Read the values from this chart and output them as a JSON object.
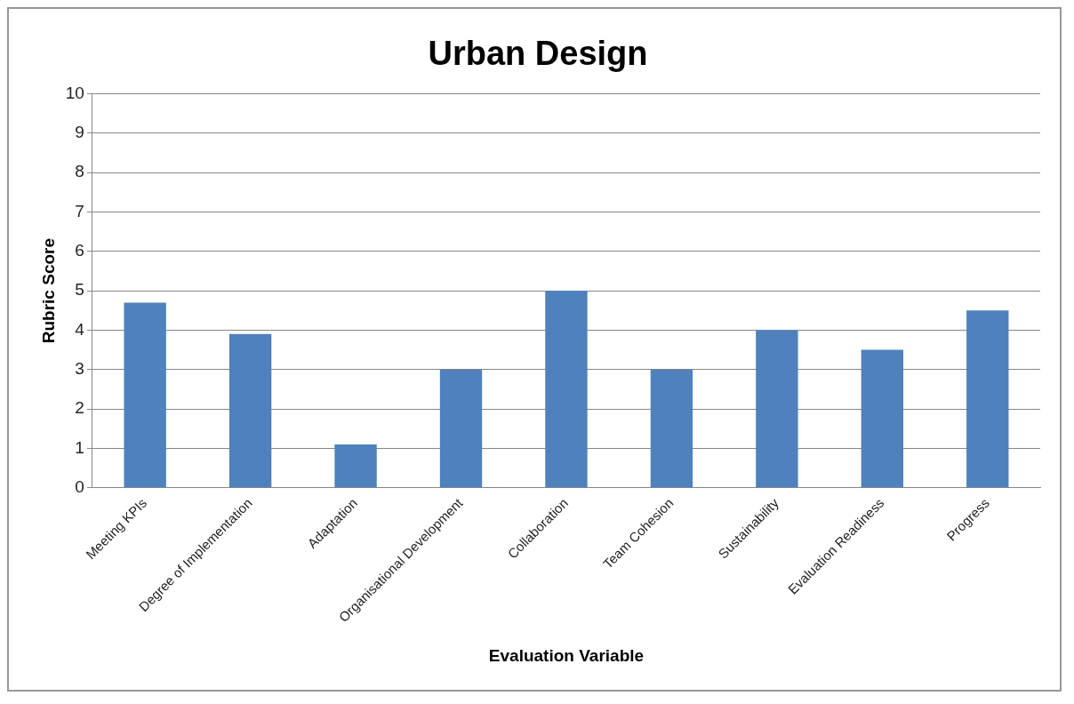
{
  "chart_data": {
    "type": "bar",
    "title": "Urban Design",
    "xlabel": "Evaluation Variable",
    "ylabel": "Rubric Score",
    "categories": [
      "Meeting KPIs",
      "Degree of Implementation",
      "Adaptation",
      "Organisational Development",
      "Collaboration",
      "Team Cohesion",
      "Sustainability",
      "Evaluation Readiness",
      "Progress"
    ],
    "values": [
      4.7,
      3.9,
      1.1,
      3,
      5,
      3,
      4,
      3.5,
      4.5
    ],
    "color": "#4f81bd",
    "ylim": [
      0,
      10
    ],
    "yticks": [
      0,
      1,
      2,
      3,
      4,
      5,
      6,
      7,
      8,
      9,
      10
    ],
    "grid": "y",
    "legend": false
  }
}
